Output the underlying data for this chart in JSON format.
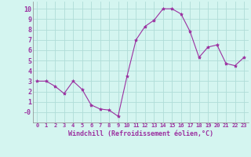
{
  "x": [
    0,
    1,
    2,
    3,
    4,
    5,
    6,
    7,
    8,
    9,
    10,
    11,
    12,
    13,
    14,
    15,
    16,
    17,
    18,
    19,
    20,
    21,
    22,
    23
  ],
  "y": [
    3.0,
    3.0,
    2.5,
    1.8,
    3.0,
    2.2,
    0.7,
    0.3,
    0.2,
    -0.4,
    3.5,
    7.0,
    8.3,
    8.9,
    10.0,
    10.0,
    9.5,
    7.8,
    5.3,
    6.3,
    6.5,
    4.7,
    4.5,
    5.3
  ],
  "line_color": "#9b30a0",
  "marker": "*",
  "marker_size": 3,
  "bg_color": "#d4f5f0",
  "grid_color": "#b0ddd8",
  "xlabel": "Windchill (Refroidissement éolien,°C)",
  "xlabel_color": "#9b30a0",
  "xlim": [
    -0.5,
    23.5
  ],
  "ylim": [
    -1.0,
    10.7
  ],
  "ytick_values": [
    0,
    1,
    2,
    3,
    4,
    5,
    6,
    7,
    8,
    9,
    10
  ],
  "ytick_labels": [
    "-0",
    "1",
    "2",
    "3",
    "4",
    "5",
    "6",
    "7",
    "8",
    "9",
    "10"
  ],
  "xticks": [
    0,
    1,
    2,
    3,
    4,
    5,
    6,
    7,
    8,
    9,
    10,
    11,
    12,
    13,
    14,
    15,
    16,
    17,
    18,
    19,
    20,
    21,
    22,
    23
  ]
}
